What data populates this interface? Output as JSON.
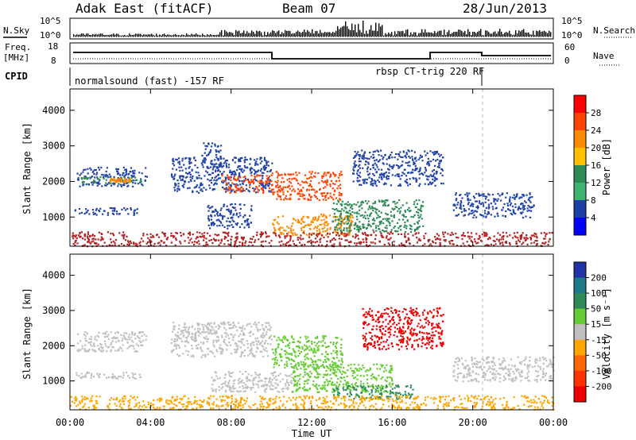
{
  "header": {
    "station": "Adak East (fitACF)",
    "beam": "Beam 07",
    "date": "28/Jun/2013"
  },
  "aux_panels": {
    "nsky_label": "N.Sky",
    "nsearch_label": "N.Search",
    "nsky_ticks": [
      "10^5",
      "10^0"
    ],
    "nsky_right_ticks": [
      "10^5",
      "10^0"
    ],
    "freq_label": "Freq.",
    "freq_unit": "[MHz]",
    "freq_ticks": [
      "18",
      "8"
    ],
    "nave_label": "Nave",
    "nave_ticks": [
      "60",
      "0"
    ],
    "cpid_label": "CPID",
    "cpid_1": "normalsound (fast) -157 RF",
    "cpid_2": "rbsp CT-trig 220 RF"
  },
  "x_axis": {
    "label": "Time UT",
    "ticks": [
      "00:00",
      "04:00",
      "08:00",
      "12:00",
      "16:00",
      "20:00",
      "00:00"
    ]
  },
  "power_colorbar": {
    "label": "Power [dB]",
    "ticks": [
      "28",
      "24",
      "20",
      "16",
      "12",
      "8",
      "4"
    ],
    "colors": [
      "#ff0000",
      "#ff4500",
      "#ff8c00",
      "#ffc000",
      "#2e8b57",
      "#3cb371",
      "#1c3faa",
      "#0000ff"
    ]
  },
  "velocity_colorbar": {
    "label": "Velocity [m s⁻¹]",
    "ticks": [
      "200",
      "100",
      "50",
      "15",
      "-15",
      "-50",
      "-100",
      "-200"
    ],
    "colors": [
      "#2233aa",
      "#1e7a8a",
      "#2e8b57",
      "#66cc33",
      "#c0c0c0",
      "#ffa500",
      "#ff6600",
      "#ff3300",
      "#ee0000"
    ]
  },
  "chart_data": [
    {
      "type": "heatmap",
      "panel": "power",
      "ylabel": "Slant Range [km]",
      "xlabel": "",
      "xlim_hours": [
        0,
        24
      ],
      "ylim": [
        180,
        4600
      ],
      "y_ticks": [
        "1000",
        "2000",
        "3000",
        "4000"
      ],
      "y_tick_values": [
        1000,
        2000,
        3000,
        4000
      ],
      "scatter_regions": [
        {
          "t0": 0.3,
          "t1": 3.8,
          "r0": 1880,
          "r1": 2420,
          "color": "#2244aa"
        },
        {
          "t0": 0.5,
          "t1": 3.5,
          "r0": 1950,
          "r1": 2150,
          "color": "#2e8b57"
        },
        {
          "t0": 1.8,
          "t1": 3.0,
          "r0": 2000,
          "r1": 2100,
          "color": "#ff8c00"
        },
        {
          "t0": 0.2,
          "t1": 3.5,
          "r0": 1080,
          "r1": 1280,
          "color": "#2244aa"
        },
        {
          "t0": 5.0,
          "t1": 10.0,
          "r0": 1700,
          "r1": 2700,
          "color": "#2244aa"
        },
        {
          "t0": 7.5,
          "t1": 10.0,
          "r0": 1700,
          "r1": 2200,
          "color": "#ff4500"
        },
        {
          "t0": 6.5,
          "t1": 7.5,
          "r0": 2400,
          "r1": 3100,
          "color": "#2244aa"
        },
        {
          "t0": 6.8,
          "t1": 9.0,
          "r0": 700,
          "r1": 1400,
          "color": "#2244aa"
        },
        {
          "t0": 10.0,
          "t1": 13.5,
          "r0": 1500,
          "r1": 2300,
          "color": "#ff4500"
        },
        {
          "t0": 10.0,
          "t1": 14.0,
          "r0": 500,
          "r1": 1100,
          "color": "#ff8c00"
        },
        {
          "t0": 13.0,
          "t1": 17.5,
          "r0": 600,
          "r1": 1500,
          "color": "#2e8b57"
        },
        {
          "t0": 14.0,
          "t1": 18.5,
          "r0": 1900,
          "r1": 2900,
          "color": "#2244aa"
        },
        {
          "t0": 19.0,
          "t1": 23.0,
          "r0": 1000,
          "r1": 1700,
          "color": "#2244aa"
        },
        {
          "t0": 0.0,
          "t1": 24.0,
          "r0": 200,
          "r1": 600,
          "color": "#b22222"
        }
      ]
    },
    {
      "type": "heatmap",
      "panel": "velocity",
      "ylabel": "Slant Range [km]",
      "xlabel": "Time UT",
      "xlim_hours": [
        0,
        24
      ],
      "ylim": [
        180,
        4600
      ],
      "y_ticks": [
        "1000",
        "2000",
        "3000",
        "4000"
      ],
      "y_tick_values": [
        1000,
        2000,
        3000,
        4000
      ],
      "scatter_regions": [
        {
          "t0": 0.3,
          "t1": 3.8,
          "r0": 1850,
          "r1": 2420,
          "color": "#c0c0c0"
        },
        {
          "t0": 0.2,
          "t1": 3.5,
          "r0": 1080,
          "r1": 1280,
          "color": "#c0c0c0"
        },
        {
          "t0": 5.0,
          "t1": 10.0,
          "r0": 1700,
          "r1": 2700,
          "color": "#c0c0c0"
        },
        {
          "t0": 7.0,
          "t1": 11.0,
          "r0": 700,
          "r1": 1300,
          "color": "#c0c0c0"
        },
        {
          "t0": 10.0,
          "t1": 13.5,
          "r0": 1400,
          "r1": 2300,
          "color": "#66cc33"
        },
        {
          "t0": 11.0,
          "t1": 16.0,
          "r0": 700,
          "r1": 1500,
          "color": "#66cc33"
        },
        {
          "t0": 13.0,
          "t1": 17.0,
          "r0": 500,
          "r1": 900,
          "color": "#2e8b57"
        },
        {
          "t0": 14.5,
          "t1": 18.5,
          "r0": 1900,
          "r1": 3100,
          "color": "#ee0000"
        },
        {
          "t0": 19.0,
          "t1": 24.0,
          "r0": 1000,
          "r1": 1700,
          "color": "#c0c0c0"
        },
        {
          "t0": 0.0,
          "t1": 24.0,
          "r0": 200,
          "r1": 600,
          "color": "#ffa500"
        }
      ]
    }
  ]
}
